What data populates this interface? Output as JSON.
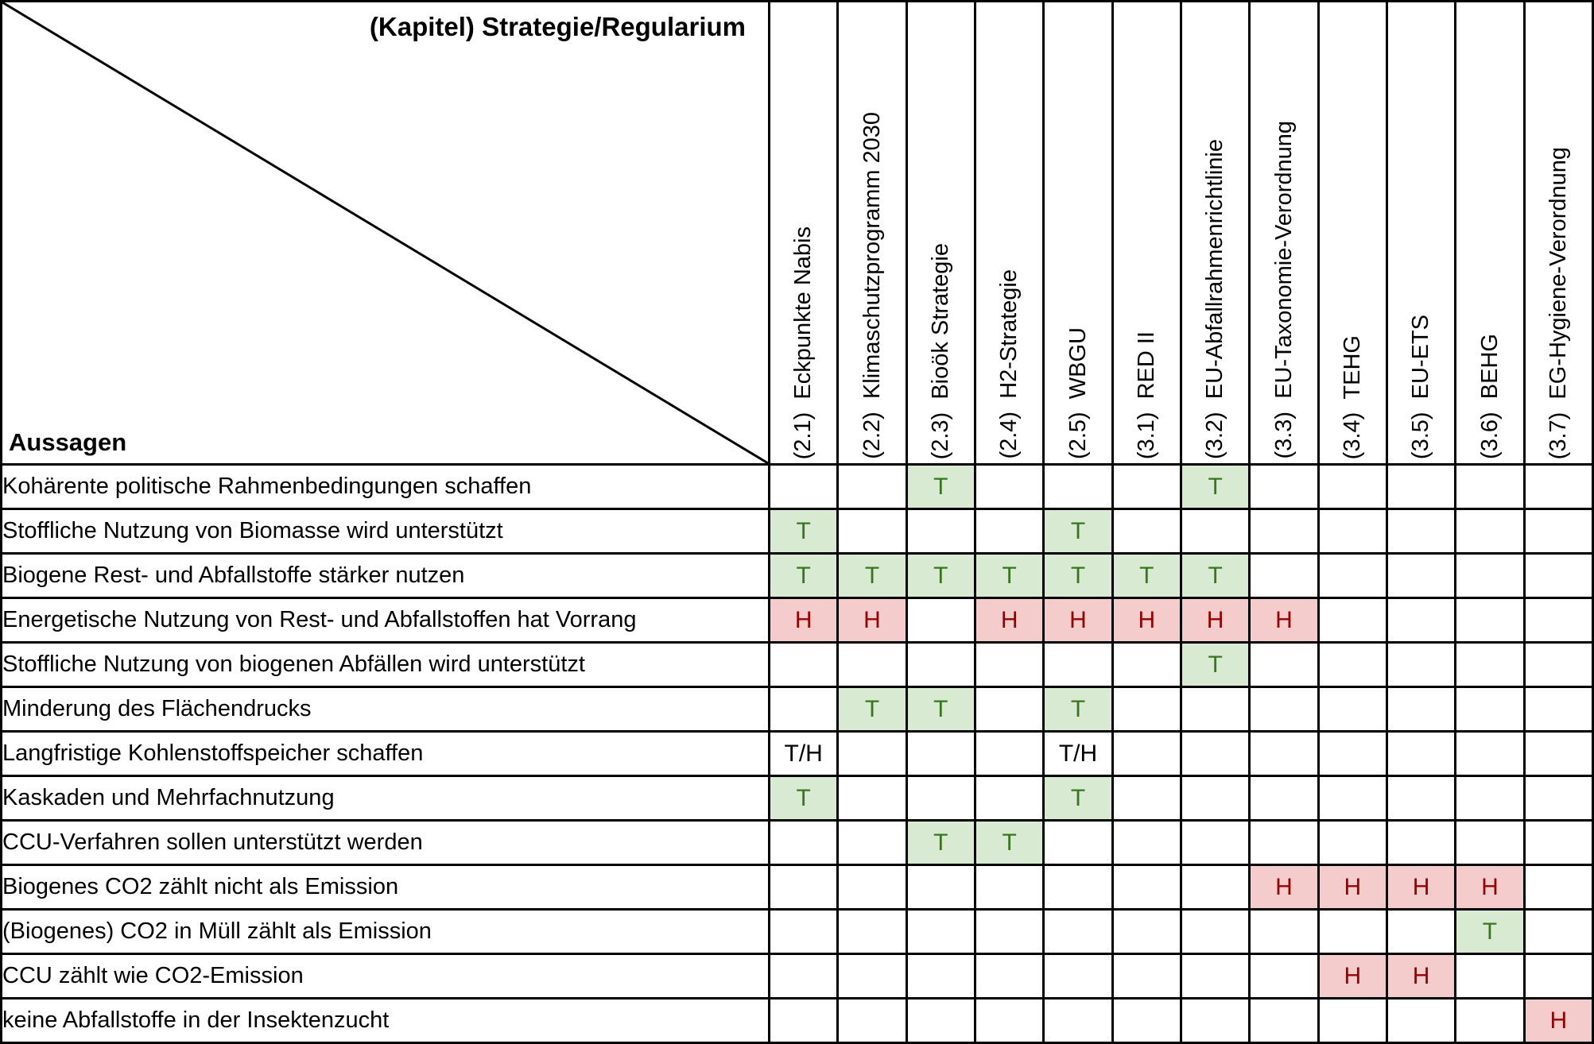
{
  "table": {
    "corner": {
      "title": "(Kapitel) Strategie/Regularium",
      "row_axis_label": "Aussagen"
    },
    "columns": [
      {
        "number": "(2.1)",
        "name": "Eckpunkte Nabis"
      },
      {
        "number": "(2.2)",
        "name": "Klimaschutzprogramm 2030"
      },
      {
        "number": "(2.3)",
        "name": "Bioök Strategie"
      },
      {
        "number": "(2.4)",
        "name": "H2-Strategie"
      },
      {
        "number": "(2.5)",
        "name": "WBGU"
      },
      {
        "number": "(3.1)",
        "name": "RED II"
      },
      {
        "number": "(3.2)",
        "name": "EU-Abfallrahmenrichtlinie"
      },
      {
        "number": "(3.3)",
        "name": "EU-Taxonomie-Verordnung"
      },
      {
        "number": "(3.4)",
        "name": "TEHG"
      },
      {
        "number": "(3.5)",
        "name": "EU-ETS"
      },
      {
        "number": "(3.6)",
        "name": "BEHG"
      },
      {
        "number": "(3.7)",
        "name": "EG-Hygiene-Verordnung"
      }
    ],
    "rows": [
      {
        "label": "Kohärente politische Rahmenbedingungen schaffen",
        "marks": {
          "3": "T",
          "7": "T"
        }
      },
      {
        "label": "Stoffliche Nutzung von Biomasse wird unterstützt",
        "marks": {
          "1": "T",
          "5": "T"
        }
      },
      {
        "label": "Biogene Rest- und Abfallstoffe stärker nutzen",
        "marks": {
          "1": "T",
          "2": "T",
          "3": "T",
          "4": "T",
          "5": "T",
          "6": "T",
          "7": "T"
        }
      },
      {
        "label": "Energetische Nutzung von Rest- und Abfallstoffen hat Vorrang",
        "marks": {
          "1": "H",
          "2": "H",
          "4": "H",
          "5": "H",
          "6": "H",
          "7": "H",
          "8": "H"
        }
      },
      {
        "label": "Stoffliche Nutzung von biogenen Abfällen wird unterstützt",
        "marks": {
          "7": "T"
        }
      },
      {
        "label": "Minderung des Flächendrucks",
        "marks": {
          "2": "T",
          "3": "T",
          "5": "T"
        }
      },
      {
        "label": "Langfristige Kohlenstoffspeicher schaffen",
        "marks": {
          "1": "T/H",
          "5": "T/H"
        }
      },
      {
        "label": "Kaskaden und Mehrfachnutzung",
        "marks": {
          "1": "T",
          "5": "T"
        }
      },
      {
        "label": "CCU-Verfahren sollen unterstützt werden",
        "marks": {
          "3": "T",
          "4": "T"
        }
      },
      {
        "label": "Biogenes CO2 zählt nicht als Emission",
        "marks": {
          "8": "H",
          "9": "H",
          "10": "H",
          "11": "H"
        }
      },
      {
        "label": "(Biogenes) CO2 in Müll zählt als Emission",
        "marks": {
          "11": "T"
        }
      },
      {
        "label": "CCU zählt wie CO2-Emission",
        "marks": {
          "9": "H",
          "10": "H"
        }
      },
      {
        "label": "keine Abfallstoffe in der Insektenzucht",
        "marks": {
          "12": "H"
        }
      }
    ],
    "mark_styles": {
      "T": {
        "bg": "#d9ead3",
        "fg": "#38761d"
      },
      "H": {
        "bg": "#f4cccc",
        "fg": "#990000"
      },
      "T/H": {
        "bg": "#ffffff",
        "fg": "#000000"
      }
    },
    "border_color": "#000000"
  }
}
